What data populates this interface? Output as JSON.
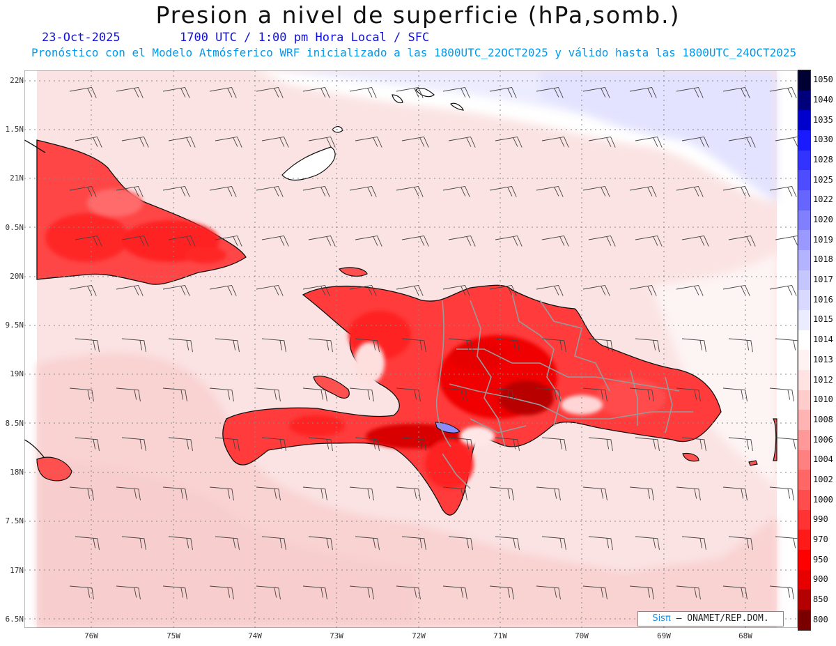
{
  "header": {
    "title": "Presion a nivel de superficie (hPa,somb.)",
    "date": "23-Oct-2025",
    "valid_time": "1700 UTC / 1:00 pm Hora Local / SFC",
    "forecast_info": "Pronóstico con el Modelo Atmósferico WRF inicializado a las 1800UTC_22OCT2025 y válido hasta las  1800UTC_24OCT2025"
  },
  "axes": {
    "lat_labels": [
      "22N",
      "1.5N",
      "21N",
      "0.5N",
      "20N",
      "9.5N",
      "19N",
      "8.5N",
      "18N",
      "7.5N",
      "17N",
      "6.5N"
    ],
    "lon_labels": [
      "76W",
      "75W",
      "74W",
      "73W",
      "72W",
      "71W",
      "70W",
      "69W",
      "68W"
    ]
  },
  "colorbar": {
    "labels": [
      "1050",
      "1040",
      "1035",
      "1030",
      "1028",
      "1025",
      "1022",
      "1020",
      "1019",
      "1018",
      "1017",
      "1016",
      "1015",
      "1014",
      "1013",
      "1012",
      "1010",
      "1008",
      "1006",
      "1004",
      "1002",
      "1000",
      "990",
      "970",
      "950",
      "900",
      "850",
      "800"
    ],
    "colors": [
      "#000033",
      "#00007a",
      "#0000cc",
      "#1a1aff",
      "#3333ff",
      "#4d4dff",
      "#6666ff",
      "#8080ff",
      "#9999ff",
      "#b3b3ff",
      "#c6c6ff",
      "#d9d9ff",
      "#ececff",
      "#ffffff",
      "#fff2f2",
      "#ffe3e3",
      "#ffcccc",
      "#ffb3b3",
      "#ff9999",
      "#ff8080",
      "#ff6666",
      "#ff4d4d",
      "#ff3333",
      "#ff1a1a",
      "#ff0000",
      "#e60000",
      "#b30000",
      "#7a0000"
    ]
  },
  "credit": {
    "brand": "Sisπ",
    "text": "– ONAMET/REP.DOM."
  }
}
